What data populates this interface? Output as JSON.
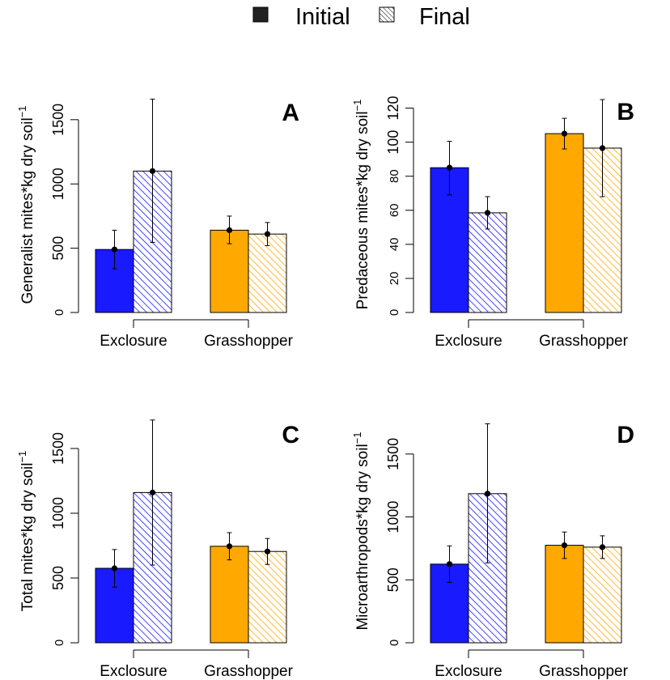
{
  "legend": {
    "items": [
      {
        "label": "Initial",
        "style": "solid"
      },
      {
        "label": "Final",
        "style": "hatched"
      }
    ]
  },
  "colors": {
    "exclosure": "#1a1aff",
    "grasshopper": "#ffa800",
    "axis": "#000000"
  },
  "chart_data": [
    {
      "type": "bar",
      "panel_letter": "A",
      "ylabel": "Generalist mites*kg dry soil",
      "ylabel_superscript": "−1",
      "categories": [
        "Exclosure",
        "Grasshopper"
      ],
      "ylim": [
        0,
        1650
      ],
      "yticks": [
        0,
        500,
        1000,
        1500
      ],
      "series": [
        {
          "name": "Initial",
          "values": [
            490,
            640
          ],
          "err_low": [
            340,
            535
          ],
          "err_high": [
            640,
            750
          ]
        },
        {
          "name": "Final",
          "values": [
            1100,
            610
          ],
          "err_low": [
            545,
            520
          ],
          "err_high": [
            1660,
            700
          ]
        }
      ]
    },
    {
      "type": "bar",
      "panel_letter": "B",
      "ylabel": "Predaceous mites*kg dry soil",
      "ylabel_superscript": "−1",
      "categories": [
        "Exclosure",
        "Grasshopper"
      ],
      "ylim": [
        0,
        125
      ],
      "yticks": [
        0,
        20,
        40,
        60,
        80,
        100,
        120
      ],
      "series": [
        {
          "name": "Initial",
          "values": [
            85,
            105
          ],
          "err_low": [
            69,
            96
          ],
          "err_high": [
            100.5,
            114
          ]
        },
        {
          "name": "Final",
          "values": [
            58.5,
            96.5
          ],
          "err_low": [
            49,
            68
          ],
          "err_high": [
            68,
            125
          ]
        }
      ]
    },
    {
      "type": "bar",
      "panel_letter": "C",
      "ylabel": "Total mites*kg dry soil",
      "ylabel_superscript": "−1",
      "categories": [
        "Exclosure",
        "Grasshopper"
      ],
      "ylim": [
        0,
        1700
      ],
      "yticks": [
        0,
        500,
        1000,
        1500
      ],
      "series": [
        {
          "name": "Initial",
          "values": [
            575,
            745
          ],
          "err_low": [
            430,
            640
          ],
          "err_high": [
            720,
            850
          ]
        },
        {
          "name": "Final",
          "values": [
            1160,
            705
          ],
          "err_low": [
            600,
            605
          ],
          "err_high": [
            1720,
            805
          ]
        }
      ]
    },
    {
      "type": "bar",
      "panel_letter": "D",
      "ylabel": "Microarthropods*kg dry soil",
      "ylabel_superscript": "−1",
      "categories": [
        "Exclosure",
        "Grasshopper"
      ],
      "ylim": [
        0,
        1750
      ],
      "yticks": [
        0,
        500,
        1000,
        1500
      ],
      "series": [
        {
          "name": "Initial",
          "values": [
            625,
            775
          ],
          "err_low": [
            480,
            670
          ],
          "err_high": [
            770,
            880
          ]
        },
        {
          "name": "Final",
          "values": [
            1185,
            760
          ],
          "err_low": [
            635,
            670
          ],
          "err_high": [
            1740,
            850
          ]
        }
      ]
    }
  ]
}
